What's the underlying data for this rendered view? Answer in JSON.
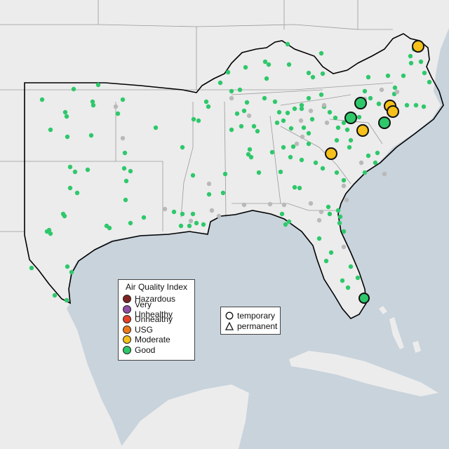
{
  "legend": {
    "title": "Air Quality Index",
    "items": [
      {
        "label": "Hazardous",
        "color": "#7e2522"
      },
      {
        "label": "Very Unhealthy",
        "color": "#8f4fa3"
      },
      {
        "label": "Unhealthy",
        "color": "#e8402b"
      },
      {
        "label": "USG",
        "color": "#ec7a1c"
      },
      {
        "label": "Moderate",
        "color": "#f5c11a"
      },
      {
        "label": "Good",
        "color": "#2ec86b"
      }
    ]
  },
  "type_legend": {
    "items": [
      {
        "label": "temporary",
        "shape": "circle"
      },
      {
        "label": "permanent",
        "shape": "triangle"
      }
    ]
  },
  "colors": {
    "ocean": "#c8d3dc",
    "land": "#ececec",
    "region_outline": "#000000",
    "inactive_monitor": "#b9b9b9"
  }
}
